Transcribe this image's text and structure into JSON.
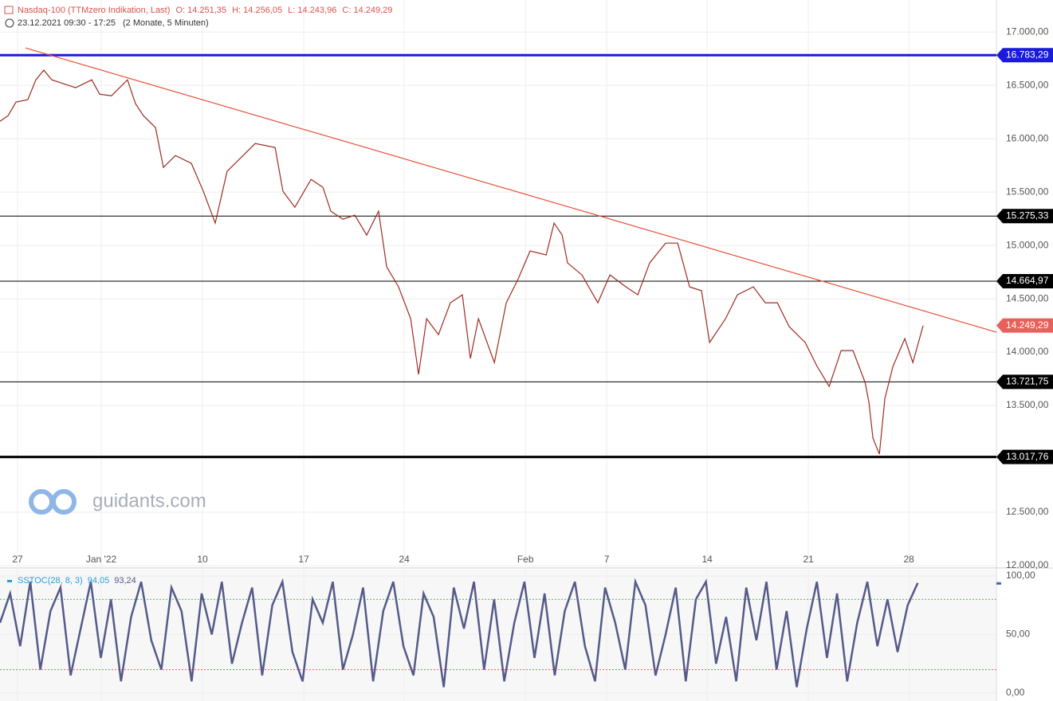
{
  "header": {
    "instrument": "Nasdaq-100 (TTMzero Indikation, Last)",
    "open": "O: 14.251,35",
    "high": "H: 14.256,05",
    "low": "L: 14.243,96",
    "close": "C: 14.249,29",
    "range": "23.12.2021 09:30 - 17:25",
    "period": "(2 Monate, 5 Minuten)",
    "watermark": "guidants.com"
  },
  "chart_data": [
    {
      "type": "line",
      "xlim": [
        0,
        49.4
      ],
      "ylim": [
        12000,
        17300
      ],
      "xticks": [
        {
          "value": 0.87,
          "label": "27"
        },
        {
          "value": 5.02,
          "label": "Jan '22"
        },
        {
          "value": 10.04,
          "label": "10"
        },
        {
          "value": 15.06,
          "label": "17"
        },
        {
          "value": 20.04,
          "label": "24"
        },
        {
          "value": 26.05,
          "label": "Feb"
        },
        {
          "value": 30.08,
          "label": "7"
        },
        {
          "value": 35.06,
          "label": "14"
        },
        {
          "value": 40.08,
          "label": "21"
        },
        {
          "value": 45.06,
          "label": "28"
        }
      ],
      "yticks": [
        {
          "value": 12000,
          "label": "12.000,00"
        },
        {
          "value": 12500,
          "label": "12.500,00"
        },
        {
          "value": 13000,
          "label": "13.000,00"
        },
        {
          "value": 13500,
          "label": "13.500,00"
        },
        {
          "value": 14000,
          "label": "14.000,00"
        },
        {
          "value": 14500,
          "label": "14.500,00"
        },
        {
          "value": 15000,
          "label": "15.000,00"
        },
        {
          "value": 15500,
          "label": "15.500,00"
        },
        {
          "value": 16000,
          "label": "16.000,00"
        },
        {
          "value": 16500,
          "label": "16.500,00"
        },
        {
          "value": 17000,
          "label": "17.000,00"
        }
      ],
      "grid": true,
      "x": [
        0,
        0.4,
        0.79,
        1.38,
        1.78,
        2.17,
        2.57,
        3.16,
        3.75,
        4.55,
        4.94,
        5.53,
        6.32,
        6.72,
        7.11,
        7.71,
        8.1,
        8.7,
        9.49,
        10.08,
        10.67,
        11.26,
        11.86,
        12.65,
        13.64,
        14.03,
        14.62,
        15.42,
        16.01,
        16.4,
        17.0,
        17.59,
        18.18,
        18.77,
        19.17,
        19.76,
        20.36,
        20.75,
        21.15,
        21.74,
        22.33,
        22.92,
        23.32,
        23.72,
        24.51,
        25.1,
        25.69,
        26.28,
        27.08,
        27.47,
        27.87,
        28.14,
        28.85,
        29.64,
        30.24,
        31.03,
        31.62,
        32.21,
        33.0,
        33.6,
        34.19,
        34.78,
        35.18,
        35.97,
        36.56,
        37.35,
        37.94,
        38.54,
        39.13,
        39.92,
        40.51,
        41.11,
        41.7,
        42.29,
        42.89,
        43.08,
        43.28,
        43.6,
        43.87,
        44.27,
        44.86,
        45.26,
        45.77
      ],
      "series": [
        {
          "color": "#9e2b20",
          "values": [
            16164,
            16216,
            16343,
            16366,
            16552,
            16642,
            16552,
            16515,
            16478,
            16552,
            16418,
            16403,
            16552,
            16328,
            16216,
            16104,
            15731,
            15843,
            15769,
            15507,
            15209,
            15694,
            15806,
            15955,
            15918,
            15507,
            15358,
            15619,
            15545,
            15321,
            15246,
            15284,
            15097,
            15321,
            14799,
            14612,
            14313,
            13791,
            14313,
            14164,
            14463,
            14537,
            13940,
            14313,
            13903,
            14463,
            14687,
            14948,
            14911,
            15209,
            15097,
            14836,
            14724,
            14463,
            14724,
            14612,
            14537,
            14836,
            15022,
            15022,
            14612,
            14575,
            14090,
            14313,
            14537,
            14612,
            14463,
            14463,
            14239,
            14090,
            13866,
            13679,
            14015,
            14015,
            13716,
            13530,
            13194,
            13045,
            13567,
            13866,
            14127,
            13903,
            14249
          ]
        }
      ],
      "levels": [
        {
          "value": 16783.29,
          "label": "16.783,29",
          "color": "#1a1adb",
          "width": 3
        },
        {
          "value": 15275.33,
          "label": "15.275,33",
          "color": "#000000",
          "width": 1
        },
        {
          "value": 14664.97,
          "label": "14.664,97",
          "color": "#000000",
          "width": 1
        },
        {
          "value": 13721.75,
          "label": "13.721,75",
          "color": "#000000",
          "width": 1
        },
        {
          "value": 13017.76,
          "label": "13.017,76",
          "color": "#000000",
          "width": 3
        }
      ],
      "trendline": {
        "x": [
          1.26,
          49.41
        ],
        "y": [
          16851,
          14187
        ],
        "color": "#e8503a"
      },
      "last": {
        "value": 14249.29,
        "label": "14.249,29",
        "color": "#e8605a"
      }
    },
    {
      "type": "line",
      "xlim": [
        0,
        49.4
      ],
      "ylim": [
        -6.8,
        105.4
      ],
      "yticks": [
        {
          "value": 0,
          "label": "0,00"
        },
        {
          "value": 50,
          "label": "50,00"
        },
        {
          "value": 100,
          "label": "100,00"
        }
      ],
      "grid": true,
      "legend": "SSTOC(28, 8, 3)",
      "readouts": [
        {
          "value": 94.05,
          "label": "94,05",
          "color": "#2a9fd6"
        },
        {
          "value": 93.24,
          "label": "93,24",
          "color": "#555a8a"
        }
      ],
      "bands": [
        {
          "value": 80,
          "color": "#5cb85c"
        },
        {
          "value": 20,
          "color": "#e8605a"
        }
      ],
      "x": [
        0,
        0.5,
        1,
        1.5,
        2,
        2.5,
        3,
        3.5,
        4,
        4.5,
        5,
        5.5,
        6,
        6.5,
        7,
        7.5,
        8,
        8.5,
        9,
        9.5,
        10,
        10.5,
        11,
        11.5,
        12,
        12.5,
        13,
        13.5,
        14,
        14.5,
        15,
        15.5,
        16,
        16.5,
        17,
        17.5,
        18,
        18.5,
        19,
        19.5,
        20,
        20.5,
        21,
        21.5,
        22,
        22.5,
        23,
        23.5,
        24,
        24.5,
        25,
        25.5,
        26,
        26.5,
        27,
        27.5,
        28,
        28.5,
        29,
        29.5,
        30,
        30.5,
        31,
        31.5,
        32,
        32.5,
        33,
        33.5,
        34,
        34.5,
        35,
        35.5,
        36,
        36.5,
        37,
        37.5,
        38,
        38.5,
        39,
        39.5,
        40,
        40.5,
        41,
        41.5,
        42,
        42.5,
        43,
        43.5,
        44,
        44.5,
        45,
        45.5
      ],
      "series": [
        {
          "color": "#555a8a",
          "values": [
            60,
            85,
            40,
            95,
            20,
            70,
            90,
            15,
            55,
            95,
            30,
            80,
            10,
            65,
            95,
            45,
            20,
            90,
            70,
            10,
            85,
            50,
            95,
            25,
            60,
            90,
            15,
            75,
            95,
            35,
            10,
            80,
            60,
            95,
            20,
            50,
            90,
            10,
            70,
            95,
            40,
            15,
            85,
            65,
            5,
            90,
            55,
            95,
            20,
            80,
            10,
            60,
            95,
            30,
            85,
            15,
            70,
            95,
            40,
            10,
            90,
            60,
            20,
            95,
            75,
            15,
            50,
            90,
            10,
            80,
            95,
            25,
            65,
            10,
            90,
            45,
            95,
            20,
            70,
            5,
            55,
            95,
            30,
            85,
            10,
            60,
            95,
            40,
            80,
            35,
            75,
            94
          ]
        }
      ]
    }
  ]
}
